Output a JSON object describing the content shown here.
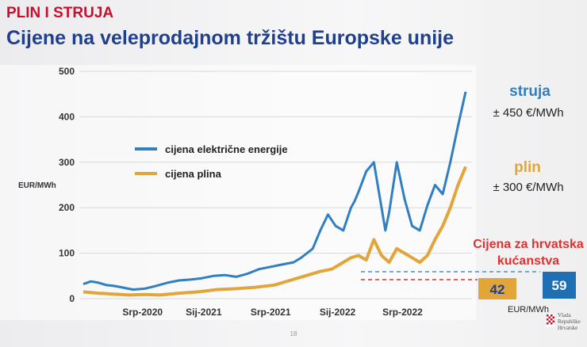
{
  "header": {
    "kicker": "PLIN I STRUJA",
    "title": "Cijene na veleprodajnom tržištu Europske unije"
  },
  "colors": {
    "electricity": "#2f7fc1",
    "gas": "#e2a53a",
    "red": "#e03030",
    "blue_box": "#1f6fb5",
    "gold_box": "#e2a53a"
  },
  "chart_data": {
    "type": "line",
    "ylabel": "EUR/MWh",
    "ylim": [
      0,
      500
    ],
    "yticks": [
      "0",
      "100",
      "200",
      "300",
      "400",
      "500"
    ],
    "xticks": [
      "Srp-2020",
      "Sij-2021",
      "Srp-2021",
      "Sij-2022",
      "Srp-2022"
    ],
    "xtick_t": [
      0.155,
      0.315,
      0.49,
      0.665,
      0.835
    ],
    "legend": [
      "cijena električne energije",
      "cijena plina"
    ],
    "series": [
      {
        "name": "cijena električne energije",
        "t": [
          0,
          0.02,
          0.04,
          0.06,
          0.08,
          0.1,
          0.13,
          0.16,
          0.19,
          0.22,
          0.25,
          0.28,
          0.31,
          0.34,
          0.37,
          0.4,
          0.43,
          0.46,
          0.49,
          0.52,
          0.55,
          0.57,
          0.6,
          0.62,
          0.64,
          0.66,
          0.68,
          0.7,
          0.71,
          0.72,
          0.74,
          0.76,
          0.78,
          0.79,
          0.8,
          0.82,
          0.84,
          0.86,
          0.88,
          0.9,
          0.92,
          0.94,
          0.96,
          0.98,
          1.0
        ],
        "values": [
          32,
          38,
          35,
          30,
          28,
          25,
          20,
          22,
          28,
          35,
          40,
          42,
          45,
          50,
          52,
          48,
          55,
          65,
          70,
          75,
          80,
          90,
          110,
          150,
          185,
          160,
          150,
          200,
          215,
          235,
          280,
          300,
          200,
          150,
          190,
          300,
          220,
          160,
          150,
          205,
          250,
          230,
          300,
          380,
          455
        ]
      },
      {
        "name": "cijena plina",
        "t": [
          0,
          0.04,
          0.08,
          0.12,
          0.16,
          0.2,
          0.25,
          0.3,
          0.35,
          0.4,
          0.45,
          0.5,
          0.54,
          0.58,
          0.62,
          0.65,
          0.68,
          0.7,
          0.72,
          0.74,
          0.76,
          0.78,
          0.8,
          0.82,
          0.84,
          0.86,
          0.88,
          0.9,
          0.92,
          0.94,
          0.96,
          0.98,
          1.0
        ],
        "values": [
          15,
          12,
          10,
          8,
          9,
          8,
          12,
          15,
          20,
          22,
          25,
          30,
          40,
          50,
          60,
          65,
          80,
          90,
          95,
          85,
          130,
          95,
          80,
          110,
          100,
          90,
          80,
          95,
          130,
          160,
          200,
          250,
          290
        ]
      }
    ]
  },
  "annotations": {
    "struja_label": "struja",
    "struja_value": "± 450 €/MWh",
    "plin_label": "plin",
    "plin_value": "± 300 €/MWh",
    "hr_title_1": "Cijena za hrvatska",
    "hr_title_2": "kućanstva",
    "box_gas": "42",
    "box_elec": "59",
    "box_unit": "EUR/MWh",
    "page_number": "18"
  },
  "logo": {
    "line1": "Vlada",
    "line2": "Republike",
    "line3": "Hrvatske"
  }
}
